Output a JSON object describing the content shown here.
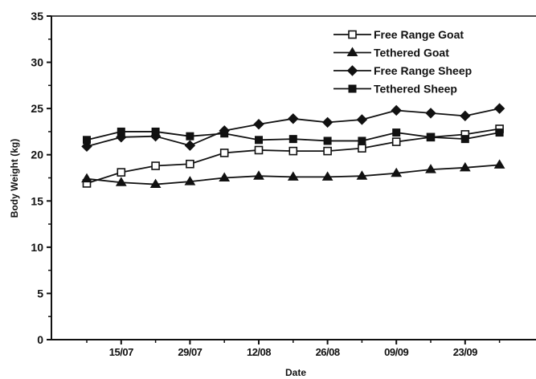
{
  "chart_data": {
    "type": "line",
    "xlabel": "Date",
    "ylabel": "Body Weight (kg)",
    "ylim": [
      0,
      35
    ],
    "yticks": [
      "0",
      "5",
      "10",
      "15",
      "20",
      "25",
      "30",
      "35"
    ],
    "xticks": [
      {
        "label": "15/07",
        "x": 2
      },
      {
        "label": "29/07",
        "x": 4
      },
      {
        "label": "12/08",
        "x": 6
      },
      {
        "label": "26/08",
        "x": 8
      },
      {
        "label": "09/09",
        "x": 10
      },
      {
        "label": "23/09",
        "x": 12
      }
    ],
    "x": [
      1,
      2,
      3,
      4,
      5,
      6,
      7,
      8,
      9,
      10,
      11,
      12,
      13
    ],
    "grid": false,
    "legend_position": "top-right",
    "series": [
      {
        "name": "Free Range Goat",
        "marker": "open-square",
        "values": [
          16.9,
          18.1,
          18.8,
          19.0,
          20.2,
          20.5,
          20.4,
          20.4,
          20.7,
          21.4,
          21.9,
          22.2,
          22.8
        ]
      },
      {
        "name": "Tethered Goat",
        "marker": "triangle",
        "values": [
          17.4,
          17.0,
          16.8,
          17.1,
          17.5,
          17.7,
          17.6,
          17.6,
          17.7,
          18.0,
          18.4,
          18.6,
          18.9
        ]
      },
      {
        "name": "Free Range Sheep",
        "marker": "diamond",
        "values": [
          20.9,
          21.9,
          22.0,
          21.0,
          22.6,
          23.3,
          23.9,
          23.5,
          23.8,
          24.8,
          24.5,
          24.2,
          25.0
        ]
      },
      {
        "name": "Tethered Sheep",
        "marker": "filled-square",
        "values": [
          21.6,
          22.5,
          22.5,
          22.0,
          22.3,
          21.6,
          21.7,
          21.5,
          21.5,
          22.4,
          21.9,
          21.7,
          22.4
        ]
      }
    ]
  }
}
